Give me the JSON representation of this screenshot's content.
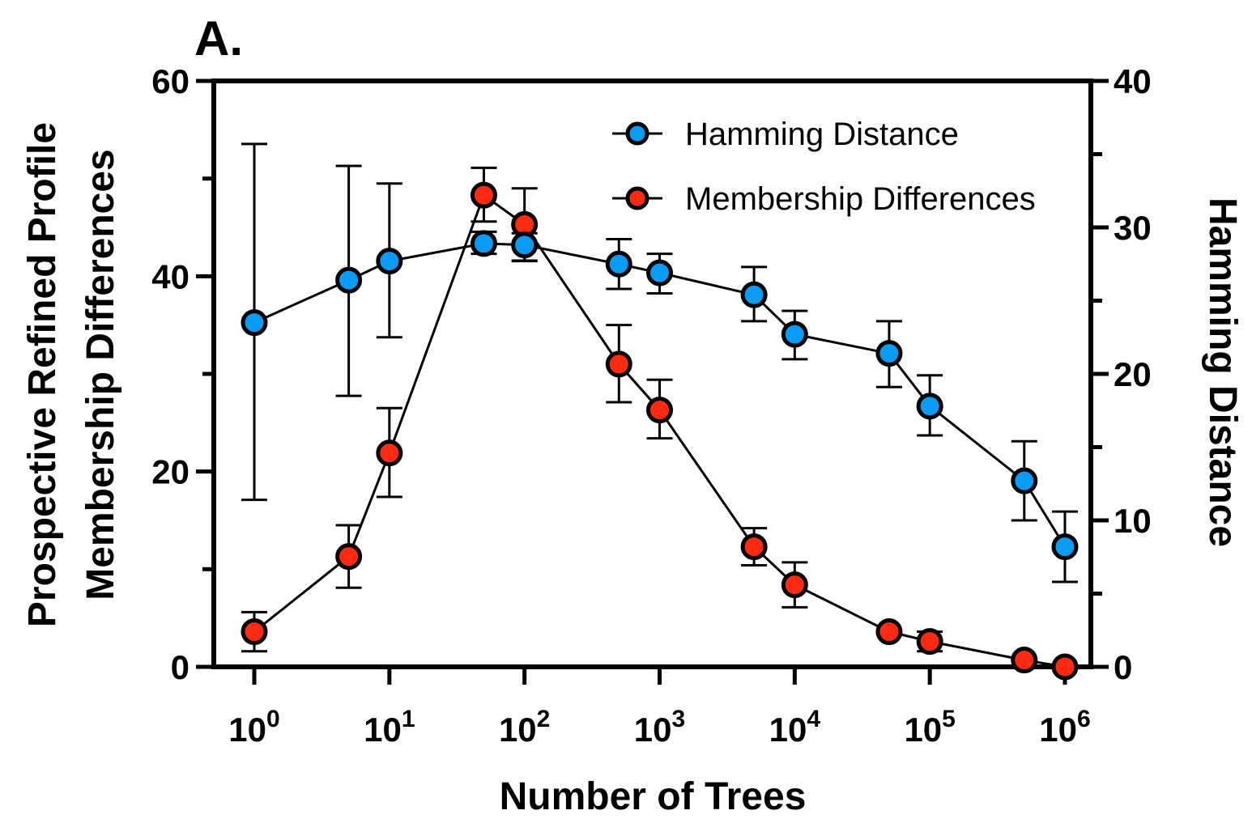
{
  "chart_data": {
    "type": "line",
    "panel_label": "A.",
    "xlabel": "Number of Trees",
    "ylabel_left_line1": "Prospective Refined Profile",
    "ylabel_left_line2": "Membership Differences",
    "ylabel_right": "Hamming Distance",
    "x_scale": "log",
    "xlim": [
      1,
      1000000
    ],
    "x_ticks": [
      1,
      10,
      100,
      1000,
      10000,
      100000,
      1000000
    ],
    "x_tick_labels": [
      {
        "base": "10",
        "exp": "0"
      },
      {
        "base": "10",
        "exp": "1"
      },
      {
        "base": "10",
        "exp": "2"
      },
      {
        "base": "10",
        "exp": "3"
      },
      {
        "base": "10",
        "exp": "4"
      },
      {
        "base": "10",
        "exp": "5"
      },
      {
        "base": "10",
        "exp": "6"
      }
    ],
    "ylim_left": [
      0,
      60
    ],
    "y_ticks_left": [
      "0",
      "20",
      "40",
      "60"
    ],
    "ylim_right": [
      0,
      40
    ],
    "y_ticks_right": [
      "0",
      "10",
      "20",
      "30",
      "40"
    ],
    "legend_position": "top-right",
    "series": [
      {
        "name": "Hamming Distance",
        "axis": "right",
        "color": "#0a9bf5",
        "x": [
          1,
          5,
          10,
          50,
          100,
          500,
          1000,
          5000,
          10000,
          50000,
          100000,
          500000,
          1000000
        ],
        "y": [
          23.5,
          26.4,
          27.7,
          28.9,
          28.8,
          27.5,
          26.9,
          25.4,
          22.7,
          21.4,
          17.8,
          12.7,
          8.2
        ],
        "err_low": [
          11.4,
          18.5,
          22.5,
          28.2,
          27.7,
          25.8,
          25.5,
          23.6,
          21.0,
          19.1,
          15.8,
          10.0,
          5.8
        ],
        "err_high": [
          35.7,
          34.2,
          33.0,
          29.7,
          29.6,
          29.2,
          28.2,
          27.3,
          24.3,
          23.6,
          19.9,
          15.4,
          10.6
        ]
      },
      {
        "name": "Membership Differences",
        "axis": "left",
        "color": "#ff2a12",
        "x": [
          1,
          5,
          10,
          50,
          100,
          500,
          1000,
          5000,
          10000,
          50000,
          100000,
          500000,
          1000000
        ],
        "y": [
          3.6,
          11.3,
          21.9,
          48.3,
          45.3,
          31.0,
          26.3,
          12.3,
          8.4,
          3.6,
          2.6,
          0.7,
          0.0
        ],
        "err_low": [
          1.6,
          8.1,
          17.4,
          45.6,
          41.6,
          27.1,
          23.4,
          10.4,
          6.1,
          3.6,
          1.6,
          0.7,
          0.0
        ],
        "err_high": [
          5.6,
          14.5,
          26.5,
          51.1,
          49.0,
          35.0,
          29.4,
          14.2,
          10.7,
          3.6,
          3.6,
          0.7,
          0.0
        ]
      }
    ]
  }
}
